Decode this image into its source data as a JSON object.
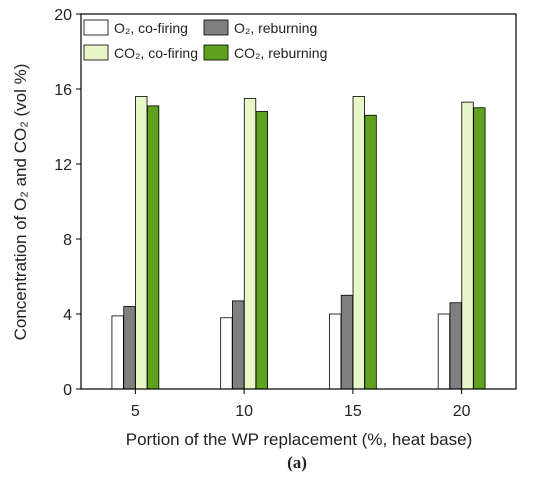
{
  "chart_data": {
    "type": "bar",
    "categories": [
      "5",
      "10",
      "15",
      "20"
    ],
    "series": [
      {
        "name": "O₂, co-firing",
        "values": [
          3.9,
          3.8,
          4.0,
          4.0
        ],
        "color": "#ffffff"
      },
      {
        "name": "O₂, reburning",
        "values": [
          4.4,
          4.7,
          5.0,
          4.6
        ],
        "color": "#808080"
      },
      {
        "name": "CO₂, co-firing",
        "values": [
          15.6,
          15.5,
          15.6,
          15.3
        ],
        "color": "#e8f7c8"
      },
      {
        "name": "CO₂, reburning",
        "values": [
          15.1,
          14.8,
          14.6,
          15.0
        ],
        "color": "#5fa21f"
      }
    ],
    "xlabel": "Portion of the WP replacement (%, heat base)",
    "ylabel": "Concentration of O₂ and CO₂ (vol %)",
    "ylim": [
      0,
      20
    ],
    "yticks": [
      "0",
      "4",
      "8",
      "12",
      "16",
      "20"
    ],
    "grid": false,
    "legend_position": "top"
  },
  "panel_label": "(a)"
}
